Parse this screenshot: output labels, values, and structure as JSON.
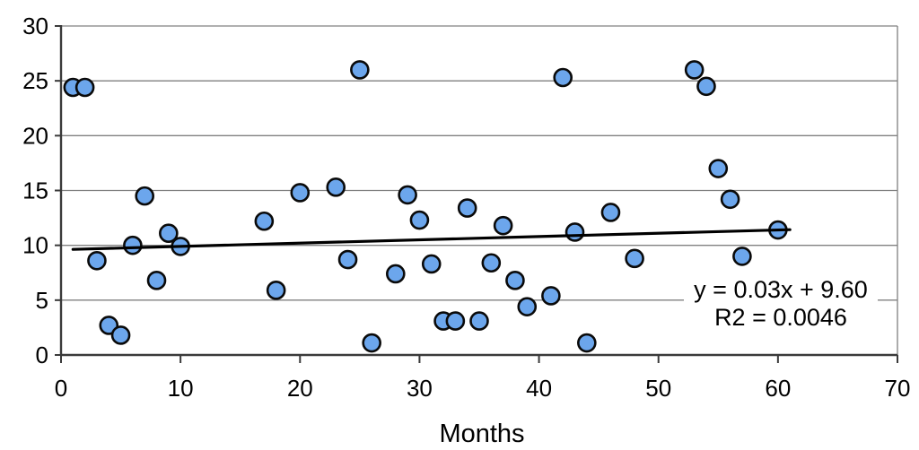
{
  "chart_data": {
    "type": "scatter",
    "title": "",
    "xlabel": "Months",
    "ylabel": "",
    "xlim": [
      0,
      70
    ],
    "ylim": [
      0,
      30
    ],
    "x_ticks": [
      0,
      10,
      20,
      30,
      40,
      50,
      60,
      70
    ],
    "y_ticks": [
      0,
      5,
      10,
      15,
      20,
      25,
      30
    ],
    "grid": true,
    "legend": false,
    "points": [
      [
        1,
        24.4
      ],
      [
        2,
        24.4
      ],
      [
        3,
        8.6
      ],
      [
        4,
        2.7
      ],
      [
        5,
        1.8
      ],
      [
        6,
        10.0
      ],
      [
        7,
        14.5
      ],
      [
        8,
        6.8
      ],
      [
        9,
        11.1
      ],
      [
        10,
        9.9
      ],
      [
        17,
        12.2
      ],
      [
        18,
        5.9
      ],
      [
        20,
        14.8
      ],
      [
        23,
        15.3
      ],
      [
        24,
        8.7
      ],
      [
        25,
        26.0
      ],
      [
        26,
        1.1
      ],
      [
        28,
        7.4
      ],
      [
        29,
        14.6
      ],
      [
        30,
        12.3
      ],
      [
        31,
        8.3
      ],
      [
        32,
        3.1
      ],
      [
        33,
        3.1
      ],
      [
        34,
        13.4
      ],
      [
        35,
        3.1
      ],
      [
        36,
        8.4
      ],
      [
        37,
        11.8
      ],
      [
        38,
        6.8
      ],
      [
        39,
        4.4
      ],
      [
        41,
        5.4
      ],
      [
        42,
        25.3
      ],
      [
        43,
        11.2
      ],
      [
        44,
        1.1
      ],
      [
        46,
        13.0
      ],
      [
        48,
        8.8
      ],
      [
        53,
        26.0
      ],
      [
        54,
        24.5
      ],
      [
        55,
        17.0
      ],
      [
        56,
        14.2
      ],
      [
        57,
        9.0
      ],
      [
        60,
        11.4
      ]
    ],
    "trendline": {
      "slope": 0.03,
      "intercept": 9.6,
      "x_start": 1,
      "x_end": 61,
      "equation": "y = 0.03x + 9.60",
      "r_squared": "R2 = 0.0046"
    }
  },
  "colors": {
    "marker_fill": "#6CA6EC",
    "marker_stroke": "#0a0a0a",
    "gridline": "#808080",
    "frame": "#808080",
    "axis": "#3a3a3a",
    "trendline": "#000000",
    "text": "#000000",
    "background": "#ffffff"
  }
}
